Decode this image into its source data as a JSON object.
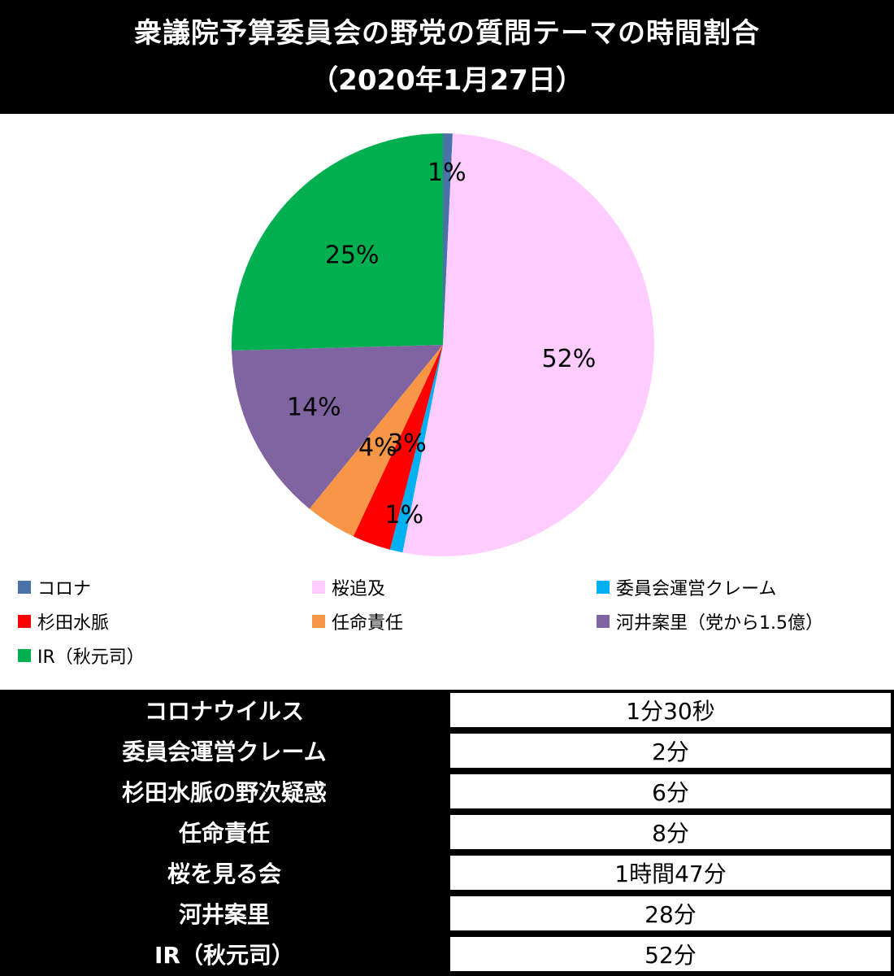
{
  "title": {
    "line1": "衆議院予算委員会の野党の質問テーマの時間割合",
    "line2": "（2020年1月27日）"
  },
  "chart_data": {
    "type": "pie",
    "title": "衆議院予算委員会の野党の質問テーマの時間割合（2020年1月27日）",
    "slices": [
      {
        "label": "コロナ",
        "percent_label": "1%",
        "minutes": 1.5,
        "color": "#4A72A8"
      },
      {
        "label": "桜追及",
        "percent_label": "52%",
        "minutes": 107,
        "color": "#FFCCFF"
      },
      {
        "label": "委員会運営クレーム",
        "percent_label": "1%",
        "minutes": 2,
        "color": "#00B0F0"
      },
      {
        "label": "杉田水脈",
        "percent_label": "3%",
        "minutes": 6,
        "color": "#FF0000"
      },
      {
        "label": "任命責任",
        "percent_label": "4%",
        "minutes": 8,
        "color": "#F79646"
      },
      {
        "label": "河井案里（党から1.5億）",
        "percent_label": "14%",
        "minutes": 28,
        "color": "#8064A2"
      },
      {
        "label": "IR（秋元司）",
        "percent_label": "25%",
        "minutes": 52,
        "color": "#00B050"
      }
    ],
    "legend_placement": "bottom"
  },
  "table": {
    "rows": [
      {
        "name": "コロナウイルス",
        "value": "1分30秒"
      },
      {
        "name": "委員会運営クレーム",
        "value": "2分"
      },
      {
        "name": "杉田水脈の野次疑惑",
        "value": "6分"
      },
      {
        "name": "任命責任",
        "value": "8分"
      },
      {
        "name": "桜を見る会",
        "value": "1時間47分"
      },
      {
        "name": "河井案里",
        "value": "28分"
      },
      {
        "name": "IR（秋元司）",
        "value": "52分"
      }
    ]
  }
}
